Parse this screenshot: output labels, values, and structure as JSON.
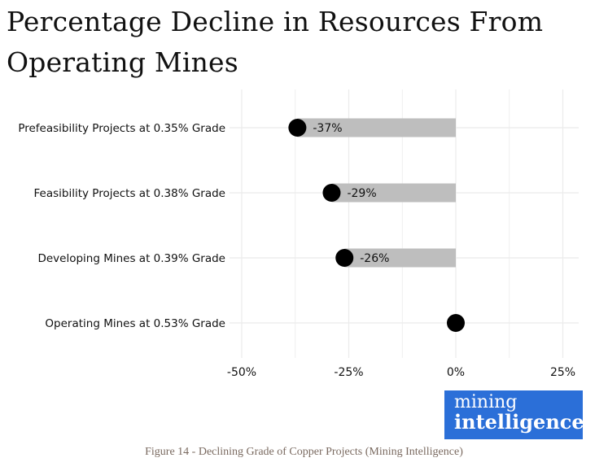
{
  "chart_data": {
    "type": "lollipop",
    "title": "Percentage Decline in Resources From Operating Mines",
    "title_lines": [
      "Percentage Decline in Resources From",
      "Operating Mines"
    ],
    "categories": [
      "Prefeasibility Projects at 0.35% Grade",
      "Feasibility Projects at 0.38% Grade",
      "Developing Mines at 0.39% Grade",
      "Operating Mines at 0.53% Grade"
    ],
    "values": [
      -37,
      -29,
      -26,
      0
    ],
    "data_labels": [
      "-37%",
      "-29%",
      "-26%",
      ""
    ],
    "xlabel": "",
    "ylabel": "",
    "xlim": [
      -53,
      28
    ],
    "xticks": [
      -50,
      -25,
      0,
      25
    ],
    "xtick_labels": [
      "-50%",
      "-25%",
      "0%",
      "25%"
    ],
    "grid": true,
    "colors": {
      "bar": "#bebebe",
      "dot": "#000000",
      "grid": "#ebebeb"
    }
  },
  "logo": {
    "line1": "mining",
    "line2": "intelligence",
    "color": "#2b6fd8"
  },
  "caption": "Figure 14 - Declining Grade of Copper Projects (Mining Intelligence)"
}
